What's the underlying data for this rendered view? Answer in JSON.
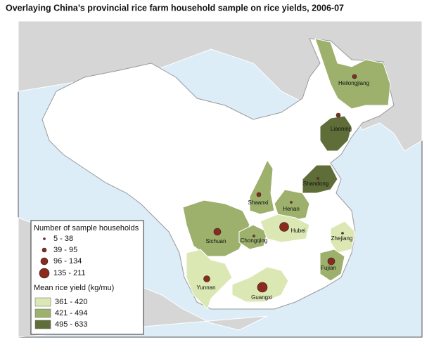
{
  "title": "Overlaying China’s provincial rice farm household sample on rice yields, 2006-07",
  "legend": {
    "size_title": "Number of sample households",
    "size_classes": [
      "5 - 38",
      "39 - 95",
      "96 - 134",
      "135 - 211"
    ],
    "color_title": "Mean rice yield (kg/mu)",
    "color_classes": [
      "361 - 420",
      "421 - 494",
      "495 - 633"
    ]
  },
  "provinces": [
    {
      "label": "Heilongjiang"
    },
    {
      "label": "Liaoning"
    },
    {
      "label": "Shandong"
    },
    {
      "label": "Shaanxi"
    },
    {
      "label": "Henan"
    },
    {
      "label": "Sichuan"
    },
    {
      "label": "Chongqing"
    },
    {
      "label": "Hubei"
    },
    {
      "label": "Zhejiang"
    },
    {
      "label": "Fujian"
    },
    {
      "label": "Yunnan"
    },
    {
      "label": "Guangxi"
    }
  ]
}
